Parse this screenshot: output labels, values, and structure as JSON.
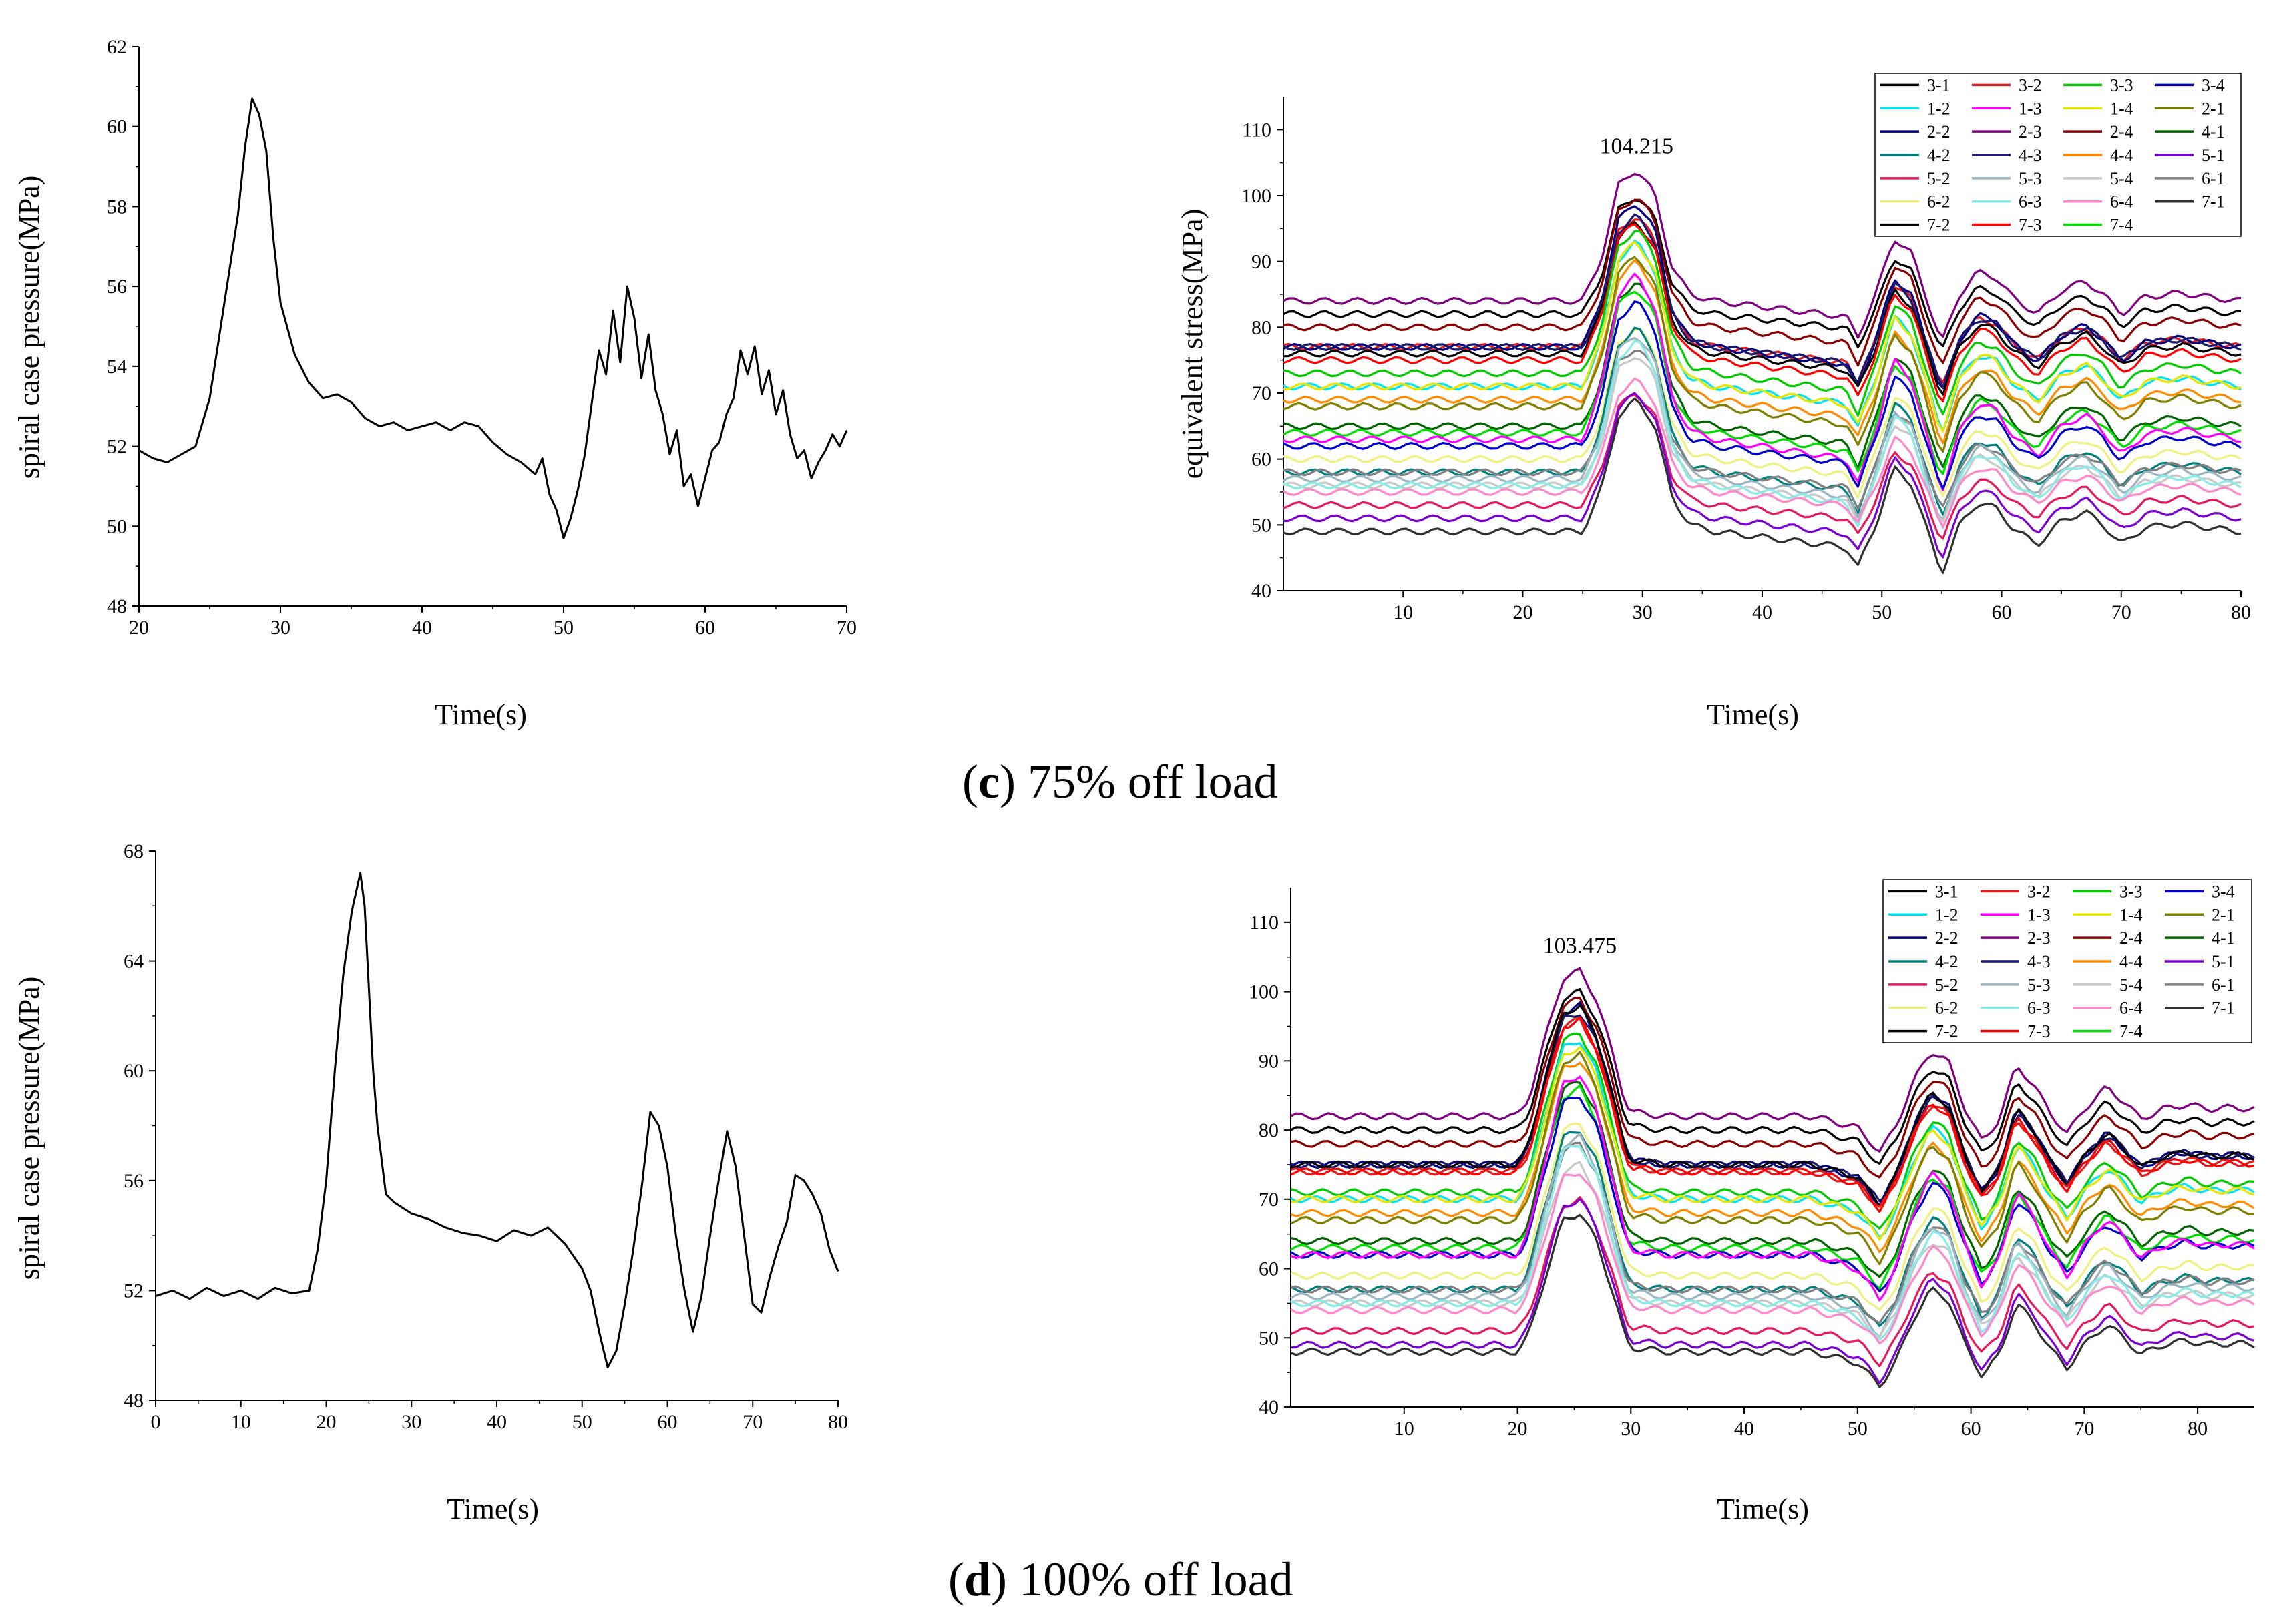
{
  "captions": {
    "c": {
      "letter": "c",
      "text": " 75% off load"
    },
    "d": {
      "letter": "d",
      "text": " 100% off load"
    }
  },
  "colors": {
    "line_black": "#000000",
    "legend": [
      "#000000",
      "#e41a1c",
      "#00cc00",
      "#0000cc",
      "#00e5ee",
      "#ff00ff",
      "#e6e600",
      "#808000",
      "#000080",
      "#800080",
      "#8b0000",
      "#006400",
      "#008080",
      "#191970",
      "#ff8c00",
      "#7b00d4",
      "#e6195b",
      "#9db4c0",
      "#c8c8c8",
      "#808080",
      "#f0f080",
      "#87ebe8",
      "#ff88cc",
      "#303030",
      "#000000",
      "#ff0000",
      "#00dd00"
    ]
  },
  "chart_data": [
    {
      "id": "c-pressure",
      "type": "line",
      "title": "",
      "xlabel": "Time(s)",
      "ylabel": "spiral case pressure(MPa)",
      "xlim": [
        20,
        70
      ],
      "ylim": [
        48,
        62
      ],
      "xticks": [
        20,
        30,
        40,
        50,
        60,
        70
      ],
      "yticks": [
        48,
        50,
        52,
        54,
        56,
        58,
        60,
        62
      ],
      "series": [
        {
          "name": "pressure",
          "x": [
            20,
            21,
            22,
            23,
            24,
            25,
            26,
            27,
            27.5,
            28,
            28.5,
            29,
            29.5,
            30,
            31,
            32,
            33,
            34,
            35,
            36,
            37,
            38,
            39,
            40,
            41,
            42,
            43,
            44,
            45,
            46,
            47,
            48,
            48.5,
            49,
            49.5,
            50,
            50.5,
            51,
            51.5,
            52,
            52.5,
            53,
            53.5,
            54,
            54.5,
            55,
            55.5,
            56,
            56.5,
            57,
            57.5,
            58,
            58.5,
            59,
            59.5,
            60,
            60.5,
            61,
            61.5,
            62,
            62.5,
            63,
            63.5,
            64,
            64.5,
            65,
            65.5,
            66,
            66.5,
            67,
            67.5,
            68,
            68.5,
            69,
            69.5,
            70
          ],
          "values": [
            51.9,
            51.7,
            51.6,
            51.8,
            52.0,
            53.2,
            55.5,
            57.8,
            59.5,
            60.7,
            60.3,
            59.4,
            57.2,
            55.6,
            54.3,
            53.6,
            53.2,
            53.3,
            53.1,
            52.7,
            52.5,
            52.6,
            52.4,
            52.5,
            52.6,
            52.4,
            52.6,
            52.5,
            52.1,
            51.8,
            51.6,
            51.3,
            51.7,
            50.8,
            50.4,
            49.7,
            50.2,
            50.9,
            51.8,
            53.1,
            54.4,
            53.8,
            55.4,
            54.1,
            56.0,
            55.2,
            53.7,
            54.8,
            53.4,
            52.8,
            51.8,
            52.4,
            51.0,
            51.3,
            50.5,
            51.2,
            51.9,
            52.1,
            52.8,
            53.2,
            54.4,
            53.8,
            54.5,
            53.3,
            53.9,
            52.8,
            53.4,
            52.3,
            51.7,
            51.9,
            51.2,
            51.6,
            51.9,
            52.3,
            52.0,
            52.4
          ]
        }
      ]
    },
    {
      "id": "c-stress",
      "type": "line",
      "title": "",
      "xlabel": "Time(s)",
      "ylabel": "equivalent stress(MPa)",
      "xlim": [
        0,
        80
      ],
      "ylim": [
        40,
        115
      ],
      "xticks": [
        10,
        20,
        30,
        40,
        50,
        60,
        70,
        80
      ],
      "yticks": [
        40,
        50,
        60,
        70,
        80,
        90,
        100,
        110
      ],
      "peak_label": "104.215",
      "peak_value": 104.215,
      "peak_time": 29.5,
      "pattern_t": [
        0,
        25,
        26.5,
        28,
        29.5,
        31,
        32.5,
        34,
        36,
        47,
        48,
        49.5,
        51,
        52.5,
        54,
        55,
        56.5,
        58,
        59.5,
        61,
        63,
        65,
        67,
        68.5,
        70,
        72,
        75,
        78,
        80
      ],
      "pattern_f": [
        0,
        0,
        0.3,
        0.88,
        1,
        0.82,
        0.25,
        0.05,
        0,
        -0.12,
        -0.27,
        0.05,
        0.48,
        0.36,
        -0.05,
        -0.32,
        0.05,
        0.22,
        0.18,
        0.02,
        -0.1,
        0.08,
        0.15,
        0.05,
        -0.1,
        0.03,
        0.06,
        0.02,
        0.0
      ],
      "legend": [
        "3-1",
        "3-2",
        "3-3",
        "3-4",
        "1-2",
        "1-3",
        "1-4",
        "2-1",
        "2-2",
        "2-3",
        "2-4",
        "4-1",
        "4-2",
        "4-3",
        "4-4",
        "5-1",
        "5-2",
        "5-3",
        "5-4",
        "6-1",
        "6-2",
        "6-3",
        "6-4",
        "7-1",
        "7-2",
        "7-3",
        "7-4"
      ],
      "series_base": [
        82,
        77,
        73,
        62,
        71,
        63,
        71,
        68,
        77,
        84,
        80,
        65,
        58,
        77,
        69,
        51,
        53,
        57,
        56,
        58,
        60,
        56,
        55,
        49,
        76,
        75,
        64
      ],
      "series_amp": [
        18,
        20,
        22,
        22,
        22,
        25,
        22,
        23,
        22,
        20,
        20,
        22,
        22,
        20,
        21,
        19,
        17,
        22,
        20,
        19,
        20,
        22,
        17,
        20,
        20,
        21,
        22
      ]
    },
    {
      "id": "d-pressure",
      "type": "line",
      "title": "",
      "xlabel": "Time(s)",
      "ylabel": "spiral case pressure(MPa)",
      "xlim": [
        0,
        80
      ],
      "ylim": [
        48,
        68
      ],
      "xticks": [
        0,
        10,
        20,
        30,
        40,
        50,
        60,
        70,
        80
      ],
      "yticks": [
        48,
        52,
        56,
        60,
        64,
        68
      ],
      "series": [
        {
          "name": "pressure",
          "x": [
            0,
            2,
            4,
            6,
            8,
            10,
            12,
            14,
            16,
            18,
            19,
            20,
            21,
            22,
            23,
            23.5,
            24,
            24.5,
            25,
            25.5,
            26,
            27,
            28,
            30,
            32,
            34,
            36,
            38,
            40,
            42,
            44,
            46,
            48,
            50,
            51,
            52,
            53,
            54,
            55,
            56,
            57,
            58,
            59,
            60,
            61,
            62,
            63,
            64,
            65,
            66,
            67,
            68,
            69,
            70,
            71,
            72,
            73,
            74,
            75,
            76,
            77,
            78,
            79,
            80
          ],
          "values": [
            51.8,
            52.0,
            51.7,
            52.1,
            51.8,
            52.0,
            51.7,
            52.1,
            51.9,
            52.0,
            53.5,
            56.0,
            60.0,
            63.5,
            65.8,
            66.5,
            67.2,
            66.0,
            63.0,
            60.0,
            58.0,
            55.5,
            55.2,
            54.8,
            54.6,
            54.3,
            54.1,
            54.0,
            53.8,
            54.2,
            54.0,
            54.3,
            53.7,
            52.8,
            52.0,
            50.5,
            49.2,
            49.8,
            51.5,
            53.5,
            55.8,
            58.5,
            58.0,
            56.5,
            54.0,
            52.0,
            50.5,
            51.8,
            54.0,
            56.0,
            57.8,
            56.5,
            54.0,
            51.5,
            51.2,
            52.5,
            53.6,
            54.5,
            56.2,
            56.0,
            55.5,
            54.8,
            53.5,
            52.7
          ]
        }
      ]
    },
    {
      "id": "d-stress",
      "type": "line",
      "title": "",
      "xlabel": "Time(s)",
      "ylabel": "",
      "xlim": [
        0,
        85
      ],
      "ylim": [
        40,
        115
      ],
      "xticks": [
        10,
        20,
        30,
        40,
        50,
        60,
        70,
        80
      ],
      "yticks": [
        40,
        50,
        60,
        70,
        80,
        90,
        100,
        110
      ],
      "peak_label": "103.475",
      "peak_value": 103.475,
      "peak_time": 25.5,
      "pattern_t": [
        0,
        20,
        21,
        22.5,
        24,
        25.5,
        27,
        28.5,
        29.5,
        30,
        33,
        46,
        50,
        52,
        53.5,
        55,
        56.5,
        58,
        59.5,
        61,
        62.5,
        64,
        65.5,
        67,
        68.5,
        70,
        72,
        73.5,
        75,
        77,
        79,
        81,
        83,
        85
      ],
      "pattern_f": [
        0,
        0,
        0.12,
        0.55,
        0.95,
        1,
        0.8,
        0.4,
        0.1,
        0.03,
        0,
        0,
        -0.08,
        -0.25,
        -0.05,
        0.25,
        0.45,
        0.38,
        0.05,
        -0.18,
        -0.02,
        0.35,
        0.22,
        0.02,
        -0.12,
        0.05,
        0.2,
        0.1,
        -0.02,
        0.05,
        0.08,
        0.05,
        0.06,
        0.05
      ],
      "legend": [
        "3-1",
        "3-2",
        "3-3",
        "3-4",
        "1-2",
        "1-3",
        "1-4",
        "2-1",
        "2-2",
        "2-3",
        "2-4",
        "4-1",
        "4-2",
        "4-3",
        "4-4",
        "5-1",
        "5-2",
        "5-3",
        "5-4",
        "6-1",
        "6-2",
        "6-3",
        "6-4",
        "7-1",
        "7-2",
        "7-3",
        "7-4"
      ],
      "series_base": [
        80,
        74,
        71,
        62,
        70,
        62,
        70,
        67,
        75,
        82,
        78,
        64,
        57,
        75,
        68,
        49,
        51,
        56,
        55,
        57,
        59,
        55,
        54,
        48,
        75,
        74,
        63
      ],
      "series_amp": [
        20,
        22,
        23,
        23,
        23,
        26,
        22,
        24,
        23,
        21,
        21,
        23,
        23,
        22,
        22,
        21,
        19,
        23,
        20,
        21,
        22,
        23,
        20,
        20,
        23,
        22,
        23
      ]
    }
  ]
}
